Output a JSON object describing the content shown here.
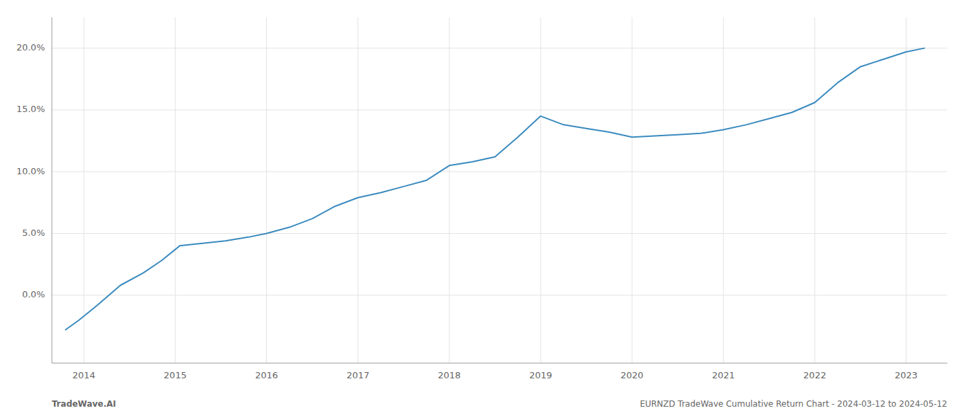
{
  "chart_data": {
    "type": "line",
    "x": [
      2013.8,
      2013.95,
      2014.15,
      2014.4,
      2014.65,
      2014.85,
      2015.05,
      2015.3,
      2015.55,
      2015.8,
      2016.0,
      2016.25,
      2016.5,
      2016.75,
      2017.0,
      2017.25,
      2017.5,
      2017.75,
      2018.0,
      2018.25,
      2018.5,
      2018.75,
      2019.0,
      2019.25,
      2019.5,
      2019.75,
      2020.0,
      2020.25,
      2020.5,
      2020.75,
      2021.0,
      2021.25,
      2021.5,
      2021.75,
      2022.0,
      2022.25,
      2022.5,
      2022.75,
      2023.0,
      2023.2
    ],
    "values": [
      -0.028,
      -0.02,
      -0.008,
      0.008,
      0.018,
      0.028,
      0.04,
      0.042,
      0.044,
      0.047,
      0.05,
      0.055,
      0.062,
      0.072,
      0.079,
      0.083,
      0.088,
      0.093,
      0.105,
      0.108,
      0.112,
      0.128,
      0.145,
      0.138,
      0.135,
      0.132,
      0.128,
      0.129,
      0.13,
      0.131,
      0.134,
      0.138,
      0.143,
      0.148,
      0.156,
      0.172,
      0.185,
      0.191,
      0.197,
      0.2
    ],
    "color": "#3a8abf",
    "xlim": [
      2013.65,
      2023.45
    ],
    "ylim": [
      -0.055,
      0.225
    ],
    "xticks": [
      2014,
      2015,
      2016,
      2017,
      2018,
      2019,
      2020,
      2021,
      2022,
      2023
    ],
    "yticks": [
      {
        "value": 0.0,
        "label": "0.0%"
      },
      {
        "value": 0.05,
        "label": "5.0%"
      },
      {
        "value": 0.1,
        "label": "10.0%"
      },
      {
        "value": 0.15,
        "label": "15.0%"
      },
      {
        "value": 0.2,
        "label": "20.0%"
      }
    ],
    "grid": true,
    "annotations": [
      "TradeWave.AI",
      "EURNZD TradeWave Cumulative Return Chart - 2024-03-12 to 2024-05-12"
    ]
  }
}
